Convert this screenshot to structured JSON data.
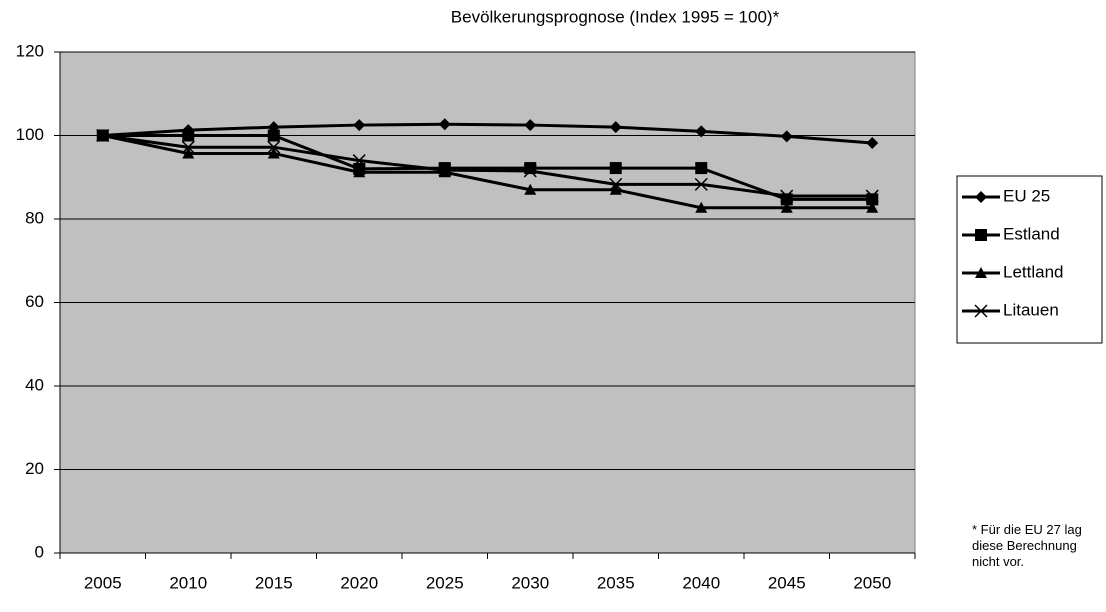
{
  "chart_data": {
    "type": "line",
    "title": "Bevölkerungsprognose (Index 1995 = 100)*",
    "footnote": "* Für die EU 27 lag diese Berechnung nicht vor.",
    "categories": [
      "2005",
      "2010",
      "2015",
      "2020",
      "2025",
      "2030",
      "2035",
      "2040",
      "2045",
      "2050"
    ],
    "series": [
      {
        "name": "EU 25",
        "color": "#000000",
        "marker": "diamond",
        "values": [
          100,
          101.3,
          102,
          102.5,
          102.7,
          102.5,
          102,
          101,
          99.8,
          98.2
        ]
      },
      {
        "name": "Estland",
        "color": "#000000",
        "marker": "square",
        "values": [
          100,
          100,
          100,
          92,
          92.2,
          92.2,
          92.2,
          92.2,
          84.7,
          84.7
        ]
      },
      {
        "name": "Lettland",
        "color": "#000000",
        "marker": "triangle",
        "values": [
          100,
          95.7,
          95.7,
          91.2,
          91.2,
          87,
          87,
          82.7,
          82.7,
          82.7
        ]
      },
      {
        "name": "Litauen",
        "color": "#000000",
        "marker": "x",
        "values": [
          100,
          97.2,
          97.2,
          94,
          91.7,
          91.5,
          88.3,
          88.3,
          85.5,
          85.5
        ]
      }
    ],
    "ylim": [
      0,
      120
    ],
    "yticks": [
      0,
      20,
      40,
      60,
      80,
      100,
      120
    ],
    "grid": true,
    "legend": "right"
  }
}
